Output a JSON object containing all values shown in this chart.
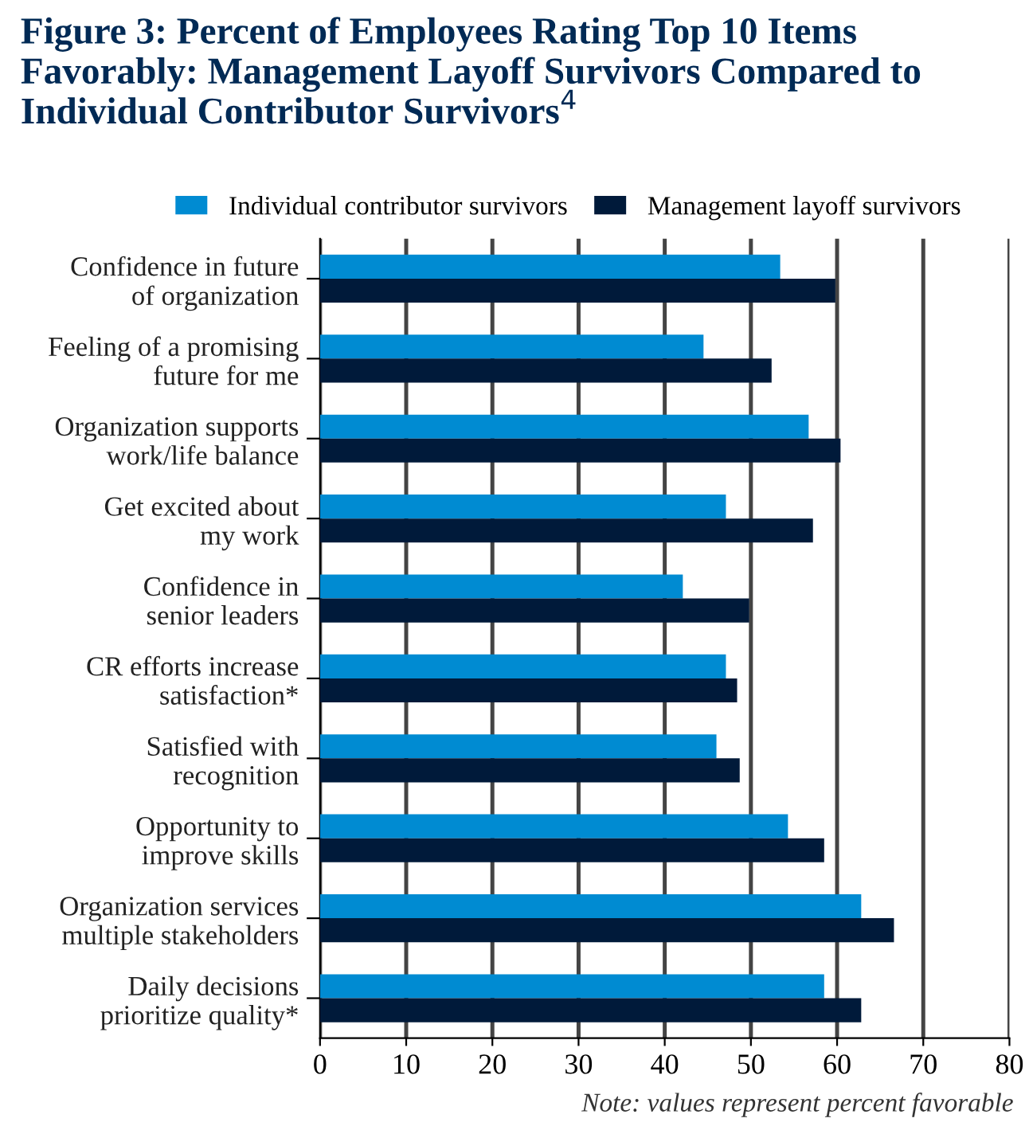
{
  "chart_data": {
    "type": "bar",
    "orientation": "horizontal",
    "title": "Figure 3: Percent of Employees Rating Top 10 Items Favorably: Management Layoff Survivors Compared to Individual Contributor Survivors$^{4}$",
    "categories": [
      "Confidence in future\nof organization",
      "Feeling of a promising\nfuture for me",
      "Organization supports\nwork/life balance",
      "Get excited about\nmy work",
      "Confidence in\nsenior leaders",
      "CR efforts increase\nsatisfaction*",
      "Satisfied with\nrecognition",
      "Opportunity to\nimprove skills",
      "Organization services\nmultiple stakeholders",
      "Daily decisions\nprioritize quality*"
    ],
    "series": [
      {
        "name": "Individual contributor survivors",
        "color": "#008bd2",
        "values": [
          53.4,
          44.5,
          56.7,
          47.1,
          42.1,
          47.1,
          46.0,
          54.3,
          62.8,
          58.5
        ]
      },
      {
        "name": "Management layoff survivors",
        "color": "#001a3a",
        "values": [
          59.8,
          52.4,
          60.4,
          57.2,
          49.8,
          48.4,
          48.7,
          58.5,
          66.6,
          62.8
        ]
      }
    ],
    "xlim": [
      0,
      80
    ],
    "xticks": [
      0,
      10,
      20,
      30,
      40,
      50,
      60,
      70,
      80
    ],
    "grid": "x",
    "legend": "top",
    "annotations": [
      "Note: values represent percent favorable"
    ]
  }
}
